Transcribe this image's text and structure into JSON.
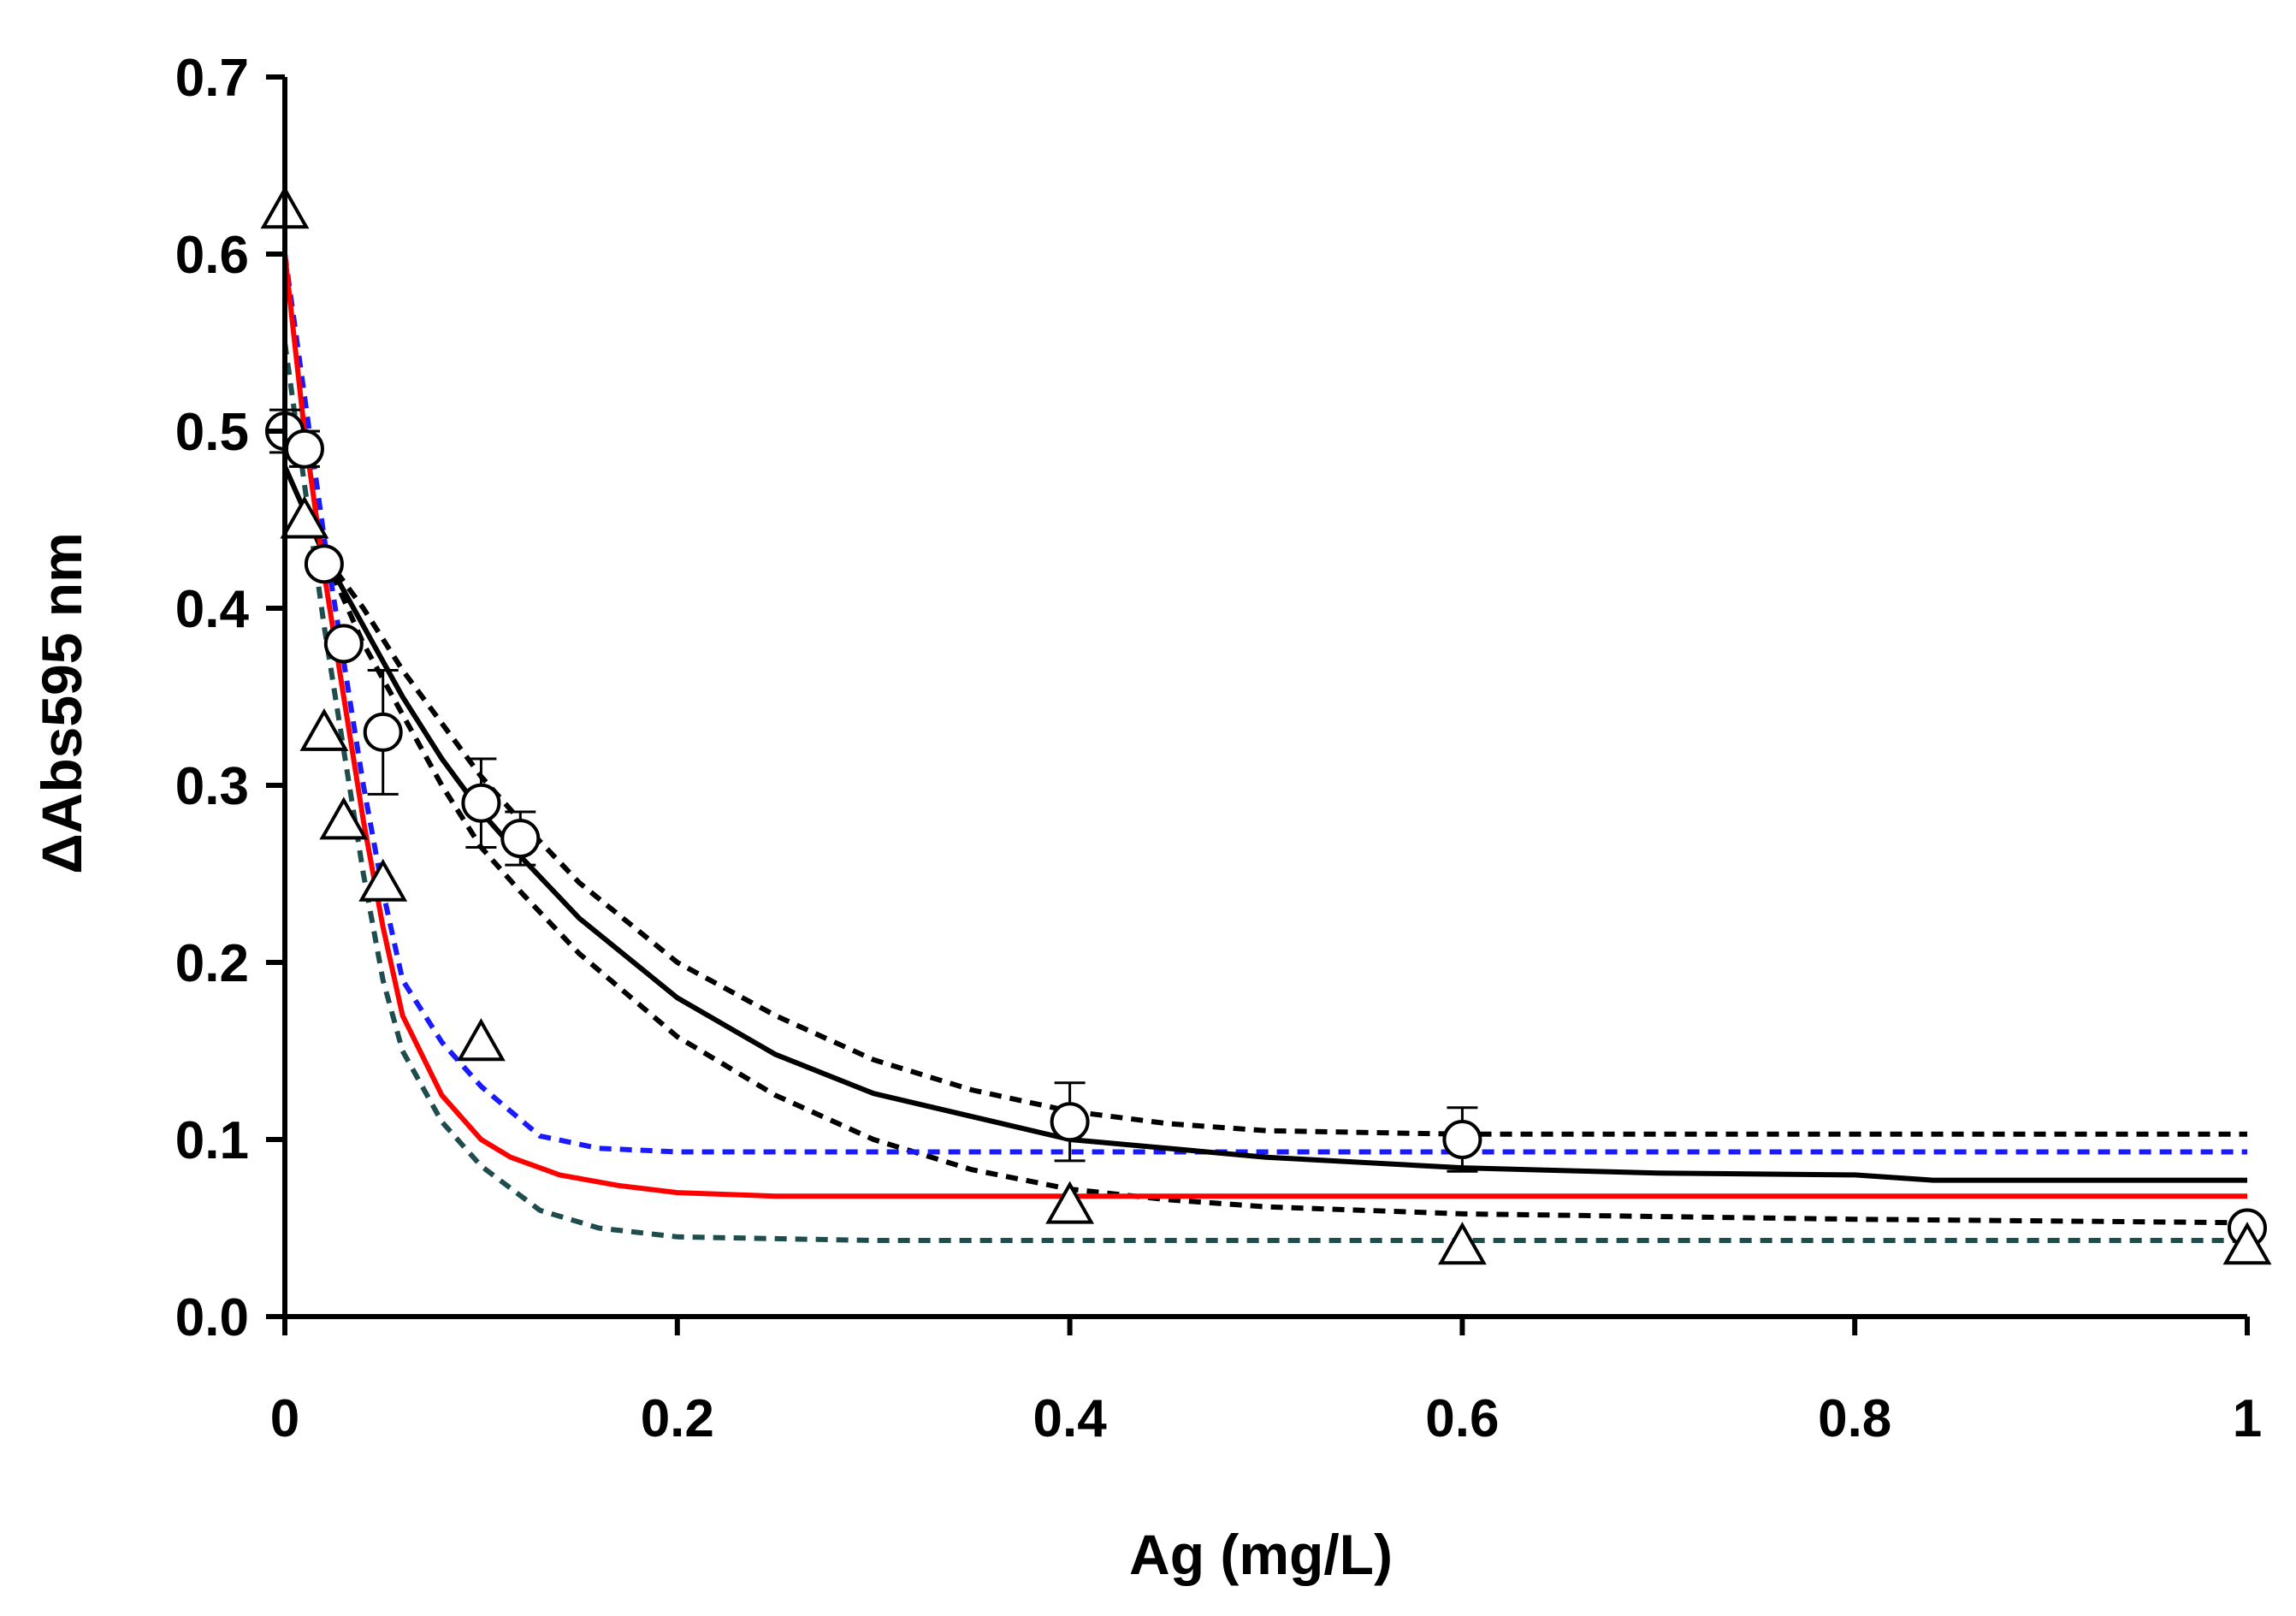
{
  "chart_data": {
    "type": "scatter",
    "title": "",
    "xlabel": "Ag (mg/L)",
    "ylabel": "ΔAbs595 nm",
    "xlim": [
      0,
      1
    ],
    "ylim": [
      0,
      0.7
    ],
    "xticks": [
      0,
      0.2,
      0.4,
      0.6,
      0.8,
      1
    ],
    "xtick_labels": [
      "0",
      "0.2",
      "0.4",
      "0.6",
      "0.8",
      "1"
    ],
    "yticks": [
      0,
      0.1,
      0.2,
      0.3,
      0.4,
      0.5,
      0.6,
      0.7
    ],
    "ytick_labels": [
      "0.0",
      "0.1",
      "0.2",
      "0.3",
      "0.4",
      "0.5",
      "0.6",
      "0.7"
    ],
    "grid": false,
    "colors": {
      "axis": "#000000",
      "red_fit": "#ff0000",
      "blue_ci": "#1a1aff",
      "teal_ci": "#1f4d4d",
      "black_fit": "#000000",
      "marker_fill": "#ffffff"
    },
    "series": [
      {
        "name": "circles",
        "marker": "circle",
        "x": [
          0,
          0.01,
          0.02,
          0.03,
          0.05,
          0.1,
          0.12,
          0.4,
          0.6,
          1.0
        ],
        "y": [
          0.5,
          0.49,
          0.425,
          0.38,
          0.33,
          0.29,
          0.27,
          0.11,
          0.1,
          0.05
        ],
        "error": [
          0.012,
          0.01,
          0.0,
          0.0,
          0.035,
          0.025,
          0.015,
          0.022,
          0.018,
          0.0
        ]
      },
      {
        "name": "triangles",
        "marker": "triangle",
        "x": [
          0,
          0.01,
          0.02,
          0.03,
          0.05,
          0.1,
          0.4,
          0.6,
          1.0
        ],
        "y": [
          0.625,
          0.45,
          0.33,
          0.28,
          0.245,
          0.155,
          0.063,
          0.04,
          0.04
        ]
      },
      {
        "name": "black fit",
        "style": "solid",
        "color": "#000000",
        "x": [
          0,
          0.02,
          0.04,
          0.06,
          0.08,
          0.1,
          0.12,
          0.15,
          0.2,
          0.25,
          0.3,
          0.4,
          0.5,
          0.6,
          0.7,
          0.8,
          0.84,
          0.9,
          1.0
        ],
        "y": [
          0.48,
          0.43,
          0.39,
          0.35,
          0.315,
          0.285,
          0.26,
          0.225,
          0.18,
          0.148,
          0.126,
          0.1,
          0.09,
          0.084,
          0.081,
          0.08,
          0.077,
          0.077,
          0.077
        ]
      },
      {
        "name": "black upper band",
        "style": "dashed",
        "color": "#000000",
        "x": [
          0.02,
          0.04,
          0.06,
          0.08,
          0.1,
          0.12,
          0.15,
          0.2,
          0.25,
          0.3,
          0.35,
          0.4,
          0.45,
          0.5,
          0.6,
          0.8,
          1.0
        ],
        "y": [
          0.43,
          0.4,
          0.365,
          0.335,
          0.305,
          0.28,
          0.245,
          0.2,
          0.17,
          0.145,
          0.128,
          0.116,
          0.109,
          0.105,
          0.103,
          0.103,
          0.103
        ]
      },
      {
        "name": "black lower band",
        "style": "dashed",
        "color": "#000000",
        "x": [
          0.02,
          0.04,
          0.06,
          0.08,
          0.1,
          0.12,
          0.15,
          0.2,
          0.25,
          0.3,
          0.35,
          0.4,
          0.45,
          0.5,
          0.6,
          0.8,
          1.0
        ],
        "y": [
          0.43,
          0.38,
          0.34,
          0.3,
          0.265,
          0.24,
          0.205,
          0.158,
          0.125,
          0.1,
          0.083,
          0.072,
          0.066,
          0.062,
          0.058,
          0.055,
          0.053
        ]
      },
      {
        "name": "red fit",
        "style": "solid",
        "color": "#ff0000",
        "x": [
          0,
          0.01,
          0.02,
          0.03,
          0.04,
          0.05,
          0.06,
          0.08,
          0.1,
          0.115,
          0.14,
          0.17,
          0.2,
          0.25,
          0.3,
          0.4,
          0.6,
          0.8,
          1.0
        ],
        "y": [
          0.6,
          0.5,
          0.42,
          0.35,
          0.28,
          0.22,
          0.17,
          0.125,
          0.1,
          0.09,
          0.08,
          0.074,
          0.07,
          0.068,
          0.068,
          0.068,
          0.068,
          0.068,
          0.068
        ]
      },
      {
        "name": "blue band",
        "style": "dashed",
        "color": "#1a1aff",
        "x": [
          0,
          0.01,
          0.02,
          0.03,
          0.04,
          0.05,
          0.06,
          0.08,
          0.1,
          0.13,
          0.16,
          0.2,
          0.3,
          0.5,
          0.8,
          1.0
        ],
        "y": [
          0.6,
          0.52,
          0.44,
          0.37,
          0.3,
          0.24,
          0.19,
          0.155,
          0.13,
          0.102,
          0.095,
          0.093,
          0.093,
          0.093,
          0.093,
          0.093
        ]
      },
      {
        "name": "teal band",
        "style": "dashed",
        "color": "#1f4d4d",
        "x": [
          0,
          0.01,
          0.02,
          0.03,
          0.04,
          0.05,
          0.06,
          0.08,
          0.1,
          0.13,
          0.16,
          0.2,
          0.3,
          0.5,
          0.8,
          1.0
        ],
        "y": [
          0.55,
          0.47,
          0.39,
          0.32,
          0.25,
          0.19,
          0.15,
          0.11,
          0.085,
          0.06,
          0.05,
          0.045,
          0.043,
          0.043,
          0.043,
          0.043
        ]
      }
    ]
  }
}
